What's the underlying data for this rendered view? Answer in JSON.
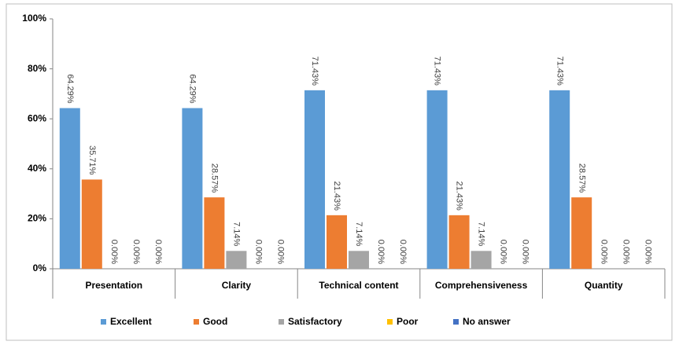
{
  "chart_data": {
    "type": "bar",
    "categories": [
      "Presentation",
      "Clarity",
      "Technical content",
      "Comprehensiveness",
      "Quantity"
    ],
    "series": [
      {
        "name": "Excellent",
        "color": "#5b9bd5",
        "values": [
          64.29,
          64.29,
          71.43,
          71.43,
          71.43
        ],
        "value_labels": [
          "64.29%",
          "64.29%",
          "71.43%",
          "71.43%",
          "71.43%"
        ]
      },
      {
        "name": "Good",
        "color": "#ed7d31",
        "values": [
          35.71,
          28.57,
          21.43,
          21.43,
          28.57
        ],
        "value_labels": [
          "35.71%",
          "28.57%",
          "21.43%",
          "21.43%",
          "28.57%"
        ]
      },
      {
        "name": "Satisfactory",
        "color": "#a5a5a5",
        "values": [
          0,
          7.14,
          7.14,
          7.14,
          0
        ],
        "value_labels": [
          "0.00%",
          "7.14%",
          "7.14%",
          "7.14%",
          "0.00%"
        ]
      },
      {
        "name": "Poor",
        "color": "#ffc000",
        "values": [
          0,
          0,
          0,
          0,
          0
        ],
        "value_labels": [
          "0.00%",
          "0.00%",
          "0.00%",
          "0.00%",
          "0.00%"
        ]
      },
      {
        "name": "No answer",
        "color": "#4472c4",
        "values": [
          0,
          0,
          0,
          0,
          0
        ],
        "value_labels": [
          "0.00%",
          "0.00%",
          "0.00%",
          "0.00%",
          "0.00%"
        ]
      }
    ],
    "ylim": [
      0,
      100
    ],
    "yticks": [
      {
        "value": 0,
        "label": "0%"
      },
      {
        "value": 20,
        "label": "20%"
      },
      {
        "value": 40,
        "label": "40%"
      },
      {
        "value": 60,
        "label": "60%"
      },
      {
        "value": 80,
        "label": "80%"
      },
      {
        "value": 100,
        "label": "100%"
      }
    ],
    "legend": "bottom"
  }
}
